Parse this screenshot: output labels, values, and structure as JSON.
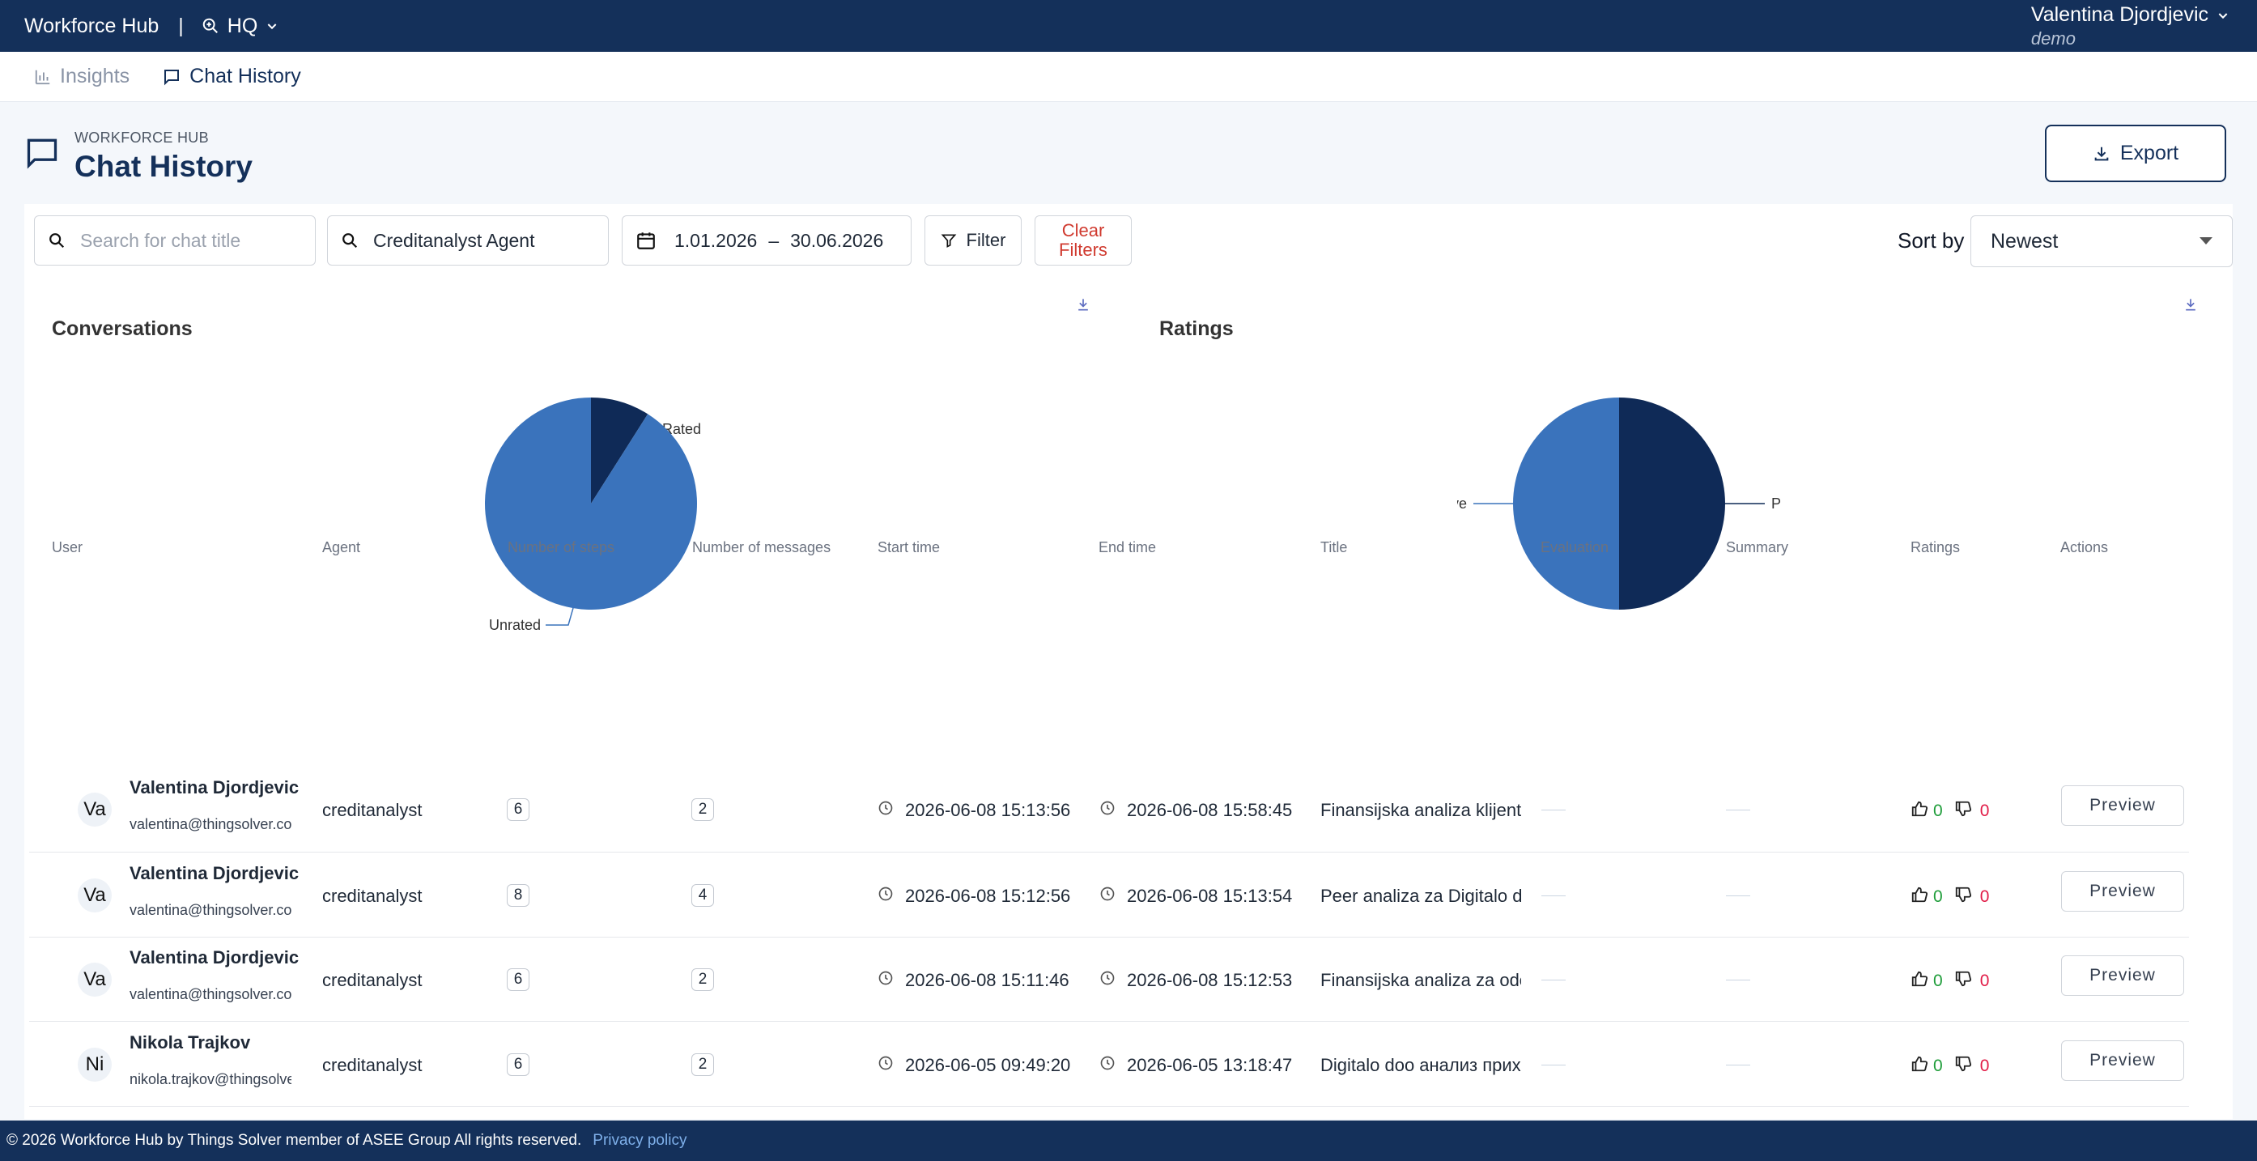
{
  "topbar": {
    "brand": "Workforce Hub",
    "separator": "|",
    "location": "HQ",
    "user_name": "Valentina Djordjevic",
    "user_role": "demo"
  },
  "tabs": [
    {
      "label": "Insights",
      "active": false
    },
    {
      "label": "Chat History",
      "active": true
    }
  ],
  "page": {
    "crumb": "WORKFORCE HUB",
    "title": "Chat History",
    "export_label": "Export"
  },
  "filters": {
    "search_placeholder": "Search for chat title",
    "agent_value": "Creditanalyst Agent",
    "date_from": "1.01.2026",
    "date_sep": "–",
    "date_to": "30.06.2026",
    "filter_label": "Filter",
    "clear_label_1": "Clear",
    "clear_label_2": "Filters",
    "sort_label": "Sort by",
    "sort_value": "Newest"
  },
  "colors": {
    "navy": "#14305a",
    "dark_slice": "#0f2a57",
    "light_slice": "#3a73bc",
    "positive": "#1f9d3a",
    "negative": "#e11d48"
  },
  "chart_data": [
    {
      "type": "pie",
      "title": "Conversations",
      "labels": [
        "Rated",
        "Unrated"
      ],
      "values": [
        9,
        91
      ]
    },
    {
      "type": "pie",
      "title": "Ratings",
      "labels": [
        "Positive",
        "Negative"
      ],
      "values": [
        50,
        50
      ]
    }
  ],
  "table": {
    "headers": [
      "User",
      "Agent",
      "Number of steps",
      "Number of messages",
      "Start time",
      "End time",
      "Title",
      "Evaluation",
      "Summary",
      "Ratings",
      "Actions"
    ],
    "rows": [
      {
        "initials": "Va",
        "name": "Valentina Djordjevic",
        "email": "valentina@thingsolver.com",
        "agent": "creditanalyst",
        "steps": "6",
        "messages": "2",
        "start": "2026-06-08 15:13:56",
        "end": "2026-06-08 15:58:45",
        "title": "Finansijska analiza klijenta",
        "up": "0",
        "down": "0",
        "action": "Preview"
      },
      {
        "initials": "Va",
        "name": "Valentina Djordjevic",
        "email": "valentina@thingsolver.com",
        "agent": "creditanalyst",
        "steps": "8",
        "messages": "4",
        "start": "2026-06-08 15:12:56",
        "end": "2026-06-08 15:13:54",
        "title": "Peer analiza za Digitalo doo",
        "up": "0",
        "down": "0",
        "action": "Preview"
      },
      {
        "initials": "Va",
        "name": "Valentina Djordjevic",
        "email": "valentina@thingsolver.com",
        "agent": "creditanalyst",
        "steps": "6",
        "messages": "2",
        "start": "2026-06-08 15:11:46",
        "end": "2026-06-08 15:12:53",
        "title": "Finansijska analiza za odo",
        "up": "0",
        "down": "0",
        "action": "Preview"
      },
      {
        "initials": "Ni",
        "name": "Nikola Trajkov",
        "email": "nikola.trajkov@thingsolver.",
        "agent": "creditanalyst",
        "steps": "6",
        "messages": "2",
        "start": "2026-06-05 09:49:20",
        "end": "2026-06-05 13:18:47",
        "title": "Digitalo doo анализ прихода",
        "up": "0",
        "down": "0",
        "action": "Preview"
      }
    ]
  },
  "footer": {
    "copyright": "© 2026  Workforce Hub by Things Solver member of ASEE Group All rights reserved.",
    "privacy": "Privacy policy"
  }
}
